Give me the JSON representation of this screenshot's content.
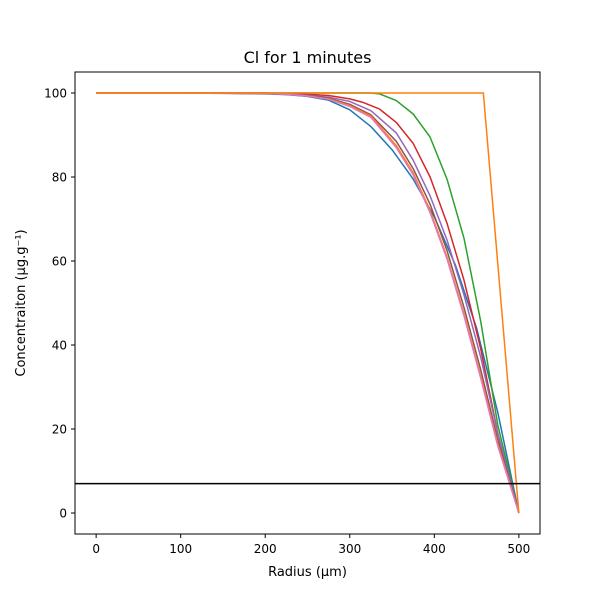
{
  "chart_data": {
    "type": "line",
    "title": "Cl for 1 minutes",
    "xlabel": "Radius (μm)",
    "ylabel": "Concentraiton (μg.g⁻¹)",
    "xlim": [
      -25,
      525
    ],
    "ylim": [
      -5.0,
      105.0
    ],
    "xticks": [
      0,
      100,
      200,
      300,
      400,
      500
    ],
    "yticks": [
      0,
      20,
      40,
      60,
      80,
      100
    ],
    "xtick_labels": [
      "0",
      "100",
      "200",
      "300",
      "400",
      "500"
    ],
    "ytick_labels": [
      "0",
      "20",
      "40",
      "60",
      "80",
      "100"
    ],
    "grid": false,
    "legend": "none",
    "hline": {
      "y": 7,
      "color": "#000000"
    },
    "series": [
      {
        "color": "#1f77b4",
        "x": [
          0,
          50,
          100,
          150,
          200,
          225,
          250,
          275,
          300,
          325,
          350,
          375,
          400,
          425,
          450,
          475,
          500
        ],
        "y": [
          100,
          100,
          100,
          99.9,
          99.8,
          99.6,
          99.2,
          98.3,
          96.0,
          92.0,
          86.5,
          79.5,
          70.5,
          59.0,
          44.0,
          24.0,
          0
        ]
      },
      {
        "color": "#2ca02c",
        "x": [
          0,
          100,
          200,
          250,
          300,
          325,
          335,
          355,
          375,
          395,
          415,
          435,
          455,
          475,
          500
        ],
        "y": [
          100,
          100,
          100,
          100,
          100,
          100,
          99.8,
          98.2,
          95.0,
          89.5,
          79.5,
          65.5,
          45.5,
          21.0,
          0
        ]
      },
      {
        "color": "#d62728",
        "x": [
          0,
          100,
          200,
          225,
          250,
          275,
          300,
          315,
          335,
          355,
          375,
          395,
          415,
          435,
          455,
          475,
          500
        ],
        "y": [
          100,
          100,
          100,
          99.9,
          99.7,
          99.4,
          98.6,
          97.8,
          96.2,
          93.0,
          88.0,
          80.0,
          69.0,
          55.5,
          39.0,
          19.0,
          0
        ]
      },
      {
        "color": "#9467bd",
        "x": [
          0,
          100,
          200,
          225,
          250,
          275,
          300,
          325,
          355,
          375,
          395,
          415,
          435,
          455,
          475,
          500
        ],
        "y": [
          100,
          100,
          99.9,
          99.8,
          99.5,
          99.0,
          98.0,
          95.8,
          90.5,
          84.0,
          75.5,
          65.0,
          52.0,
          37.0,
          19.0,
          0
        ]
      },
      {
        "color": "#8c564b",
        "x": [
          0,
          100,
          200,
          225,
          250,
          275,
          300,
          325,
          355,
          375,
          395,
          415,
          435,
          455,
          475,
          500
        ],
        "y": [
          100,
          100,
          99.9,
          99.7,
          99.4,
          98.8,
          97.3,
          94.8,
          88.5,
          82.0,
          73.5,
          62.5,
          49.0,
          34.0,
          17.5,
          0
        ]
      },
      {
        "color": "#ff7f0e",
        "x": [
          0,
          100,
          200,
          225,
          250,
          275,
          300,
          325,
          355,
          375,
          395,
          415,
          435,
          455,
          475,
          500
        ],
        "y": [
          100,
          100,
          99.9,
          99.7,
          99.3,
          98.6,
          97.0,
          94.5,
          87.5,
          81.0,
          72.0,
          61.0,
          47.5,
          32.5,
          16.5,
          0
        ]
      },
      {
        "color": "#e377c2",
        "x": [
          0,
          100,
          200,
          225,
          250,
          275,
          300,
          325,
          355,
          375,
          395,
          415,
          435,
          455,
          475,
          500
        ],
        "y": [
          100,
          100,
          99.9,
          99.7,
          99.3,
          98.5,
          96.8,
          94.2,
          87.0,
          80.5,
          71.5,
          60.5,
          47.0,
          32.0,
          16.0,
          0
        ]
      },
      {
        "color": "#ff7f0e",
        "x": [
          0,
          458,
          500
        ],
        "y": [
          100,
          100,
          0
        ]
      }
    ]
  }
}
